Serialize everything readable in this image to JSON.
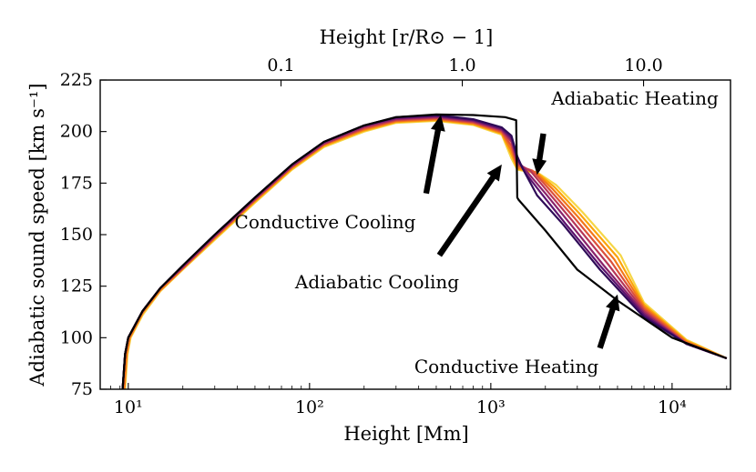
{
  "chart_data": {
    "type": "line",
    "title": "",
    "xlabel": "Height [Mm]",
    "ylabel": "Adiabatic sound speed [km s⁻¹]",
    "x2label": "Height [r/R⊙ − 1]",
    "xscale": "log",
    "xlim": [
      7,
      21000
    ],
    "ylim": [
      75,
      225
    ],
    "xticks": [
      {
        "value": 10,
        "label": "10¹"
      },
      {
        "value": 100,
        "label": "10²"
      },
      {
        "value": 1000,
        "label": "10³"
      },
      {
        "value": 10000,
        "label": "10⁴"
      }
    ],
    "x2ticks": [
      {
        "value": 69.6,
        "label": "0.1"
      },
      {
        "value": 696,
        "label": "1.0"
      },
      {
        "value": 6960,
        "label": "10.0"
      }
    ],
    "yticks": [
      75,
      100,
      125,
      150,
      175,
      200,
      225
    ],
    "grid": false,
    "legend": "none",
    "colors": [
      "#000000",
      "#2e0a57",
      "#5c126e",
      "#8a226a",
      "#b73557",
      "#dc503b",
      "#f3771a",
      "#fca50a",
      "#f6d645"
    ],
    "series": [
      {
        "values": [
          [
            9.3,
            75
          ],
          [
            9.6,
            92
          ],
          [
            10,
            100
          ],
          [
            12,
            113
          ],
          [
            15,
            124
          ],
          [
            20,
            135
          ],
          [
            30,
            150
          ],
          [
            50,
            168
          ],
          [
            80,
            184
          ],
          [
            120,
            195
          ],
          [
            200,
            203
          ],
          [
            300,
            207
          ],
          [
            500,
            208.3
          ],
          [
            800,
            208
          ],
          [
            1200,
            207
          ],
          [
            1380,
            205.5
          ],
          [
            1400,
            168
          ],
          [
            1420,
            167
          ],
          [
            2000,
            152
          ],
          [
            3000,
            133
          ],
          [
            5000,
            118
          ],
          [
            10000,
            100
          ],
          [
            20000,
            90
          ]
        ]
      },
      {
        "values": [
          [
            9.3,
            75
          ],
          [
            9.6,
            92
          ],
          [
            10,
            100
          ],
          [
            12,
            113
          ],
          [
            15,
            124
          ],
          [
            20,
            135
          ],
          [
            30,
            150
          ],
          [
            50,
            168
          ],
          [
            80,
            184
          ],
          [
            120,
            195
          ],
          [
            200,
            203
          ],
          [
            300,
            207
          ],
          [
            500,
            208
          ],
          [
            800,
            206
          ],
          [
            1150,
            202
          ],
          [
            1300,
            198
          ],
          [
            1400,
            188
          ],
          [
            1500,
            182
          ],
          [
            1800,
            169
          ],
          [
            2500,
            155
          ],
          [
            4000,
            133
          ],
          [
            7000,
            110
          ],
          [
            12000,
            97
          ],
          [
            20000,
            90
          ]
        ]
      },
      {
        "values": [
          [
            9.3,
            75
          ],
          [
            9.6,
            92
          ],
          [
            10,
            100
          ],
          [
            12,
            113
          ],
          [
            15,
            124
          ],
          [
            20,
            135
          ],
          [
            30,
            150
          ],
          [
            50,
            168
          ],
          [
            80,
            184
          ],
          [
            120,
            195
          ],
          [
            200,
            203
          ],
          [
            300,
            206.6
          ],
          [
            500,
            207.6
          ],
          [
            800,
            205.6
          ],
          [
            1150,
            201.5
          ],
          [
            1300,
            197
          ],
          [
            1400,
            187
          ],
          [
            1550,
            180
          ],
          [
            1900,
            170
          ],
          [
            2600,
            155
          ],
          [
            4000,
            135
          ],
          [
            7000,
            111
          ],
          [
            12000,
            97
          ],
          [
            20000,
            90
          ]
        ]
      },
      {
        "values": [
          [
            9.3,
            75
          ],
          [
            9.6,
            92
          ],
          [
            10,
            100
          ],
          [
            12,
            113
          ],
          [
            15,
            124
          ],
          [
            20,
            134.5
          ],
          [
            30,
            149.5
          ],
          [
            50,
            167.5
          ],
          [
            80,
            183.5
          ],
          [
            120,
            194.5
          ],
          [
            200,
            202.5
          ],
          [
            300,
            206.2
          ],
          [
            500,
            207.2
          ],
          [
            800,
            205.2
          ],
          [
            1150,
            201
          ],
          [
            1300,
            196
          ],
          [
            1400,
            186
          ],
          [
            1600,
            180
          ],
          [
            2000,
            170
          ],
          [
            2700,
            156
          ],
          [
            4200,
            135
          ],
          [
            7000,
            112
          ],
          [
            12000,
            97
          ],
          [
            20000,
            90
          ]
        ]
      },
      {
        "values": [
          [
            9.3,
            75
          ],
          [
            9.6,
            92
          ],
          [
            10,
            100
          ],
          [
            12,
            113
          ],
          [
            15,
            124
          ],
          [
            20,
            134
          ],
          [
            30,
            149
          ],
          [
            50,
            167
          ],
          [
            80,
            183
          ],
          [
            120,
            194
          ],
          [
            200,
            202
          ],
          [
            300,
            205.8
          ],
          [
            500,
            206.8
          ],
          [
            800,
            204.8
          ],
          [
            1150,
            200.5
          ],
          [
            1300,
            195
          ],
          [
            1400,
            184.5
          ],
          [
            1650,
            181
          ],
          [
            2100,
            170
          ],
          [
            2800,
            157
          ],
          [
            4400,
            136
          ],
          [
            7000,
            113
          ],
          [
            12000,
            97
          ],
          [
            20000,
            90
          ]
        ]
      },
      {
        "values": [
          [
            9.3,
            75
          ],
          [
            9.6,
            92
          ],
          [
            10,
            100
          ],
          [
            12,
            113
          ],
          [
            15,
            124
          ],
          [
            20,
            134
          ],
          [
            30,
            149
          ],
          [
            50,
            167
          ],
          [
            80,
            183
          ],
          [
            120,
            194
          ],
          [
            200,
            201.5
          ],
          [
            300,
            205.4
          ],
          [
            500,
            206.4
          ],
          [
            800,
            204.4
          ],
          [
            1150,
            200
          ],
          [
            1300,
            193
          ],
          [
            1400,
            183.5
          ],
          [
            1700,
            181
          ],
          [
            2150,
            171
          ],
          [
            2900,
            158
          ],
          [
            4600,
            137
          ],
          [
            7000,
            114
          ],
          [
            12000,
            97.5
          ],
          [
            20000,
            90
          ]
        ]
      },
      {
        "values": [
          [
            9.5,
            75
          ],
          [
            9.8,
            92
          ],
          [
            10.2,
            100
          ],
          [
            12,
            112
          ],
          [
            15,
            123
          ],
          [
            20,
            133.5
          ],
          [
            30,
            148.5
          ],
          [
            50,
            166.5
          ],
          [
            80,
            182.5
          ],
          [
            120,
            193.5
          ],
          [
            200,
            201
          ],
          [
            300,
            205
          ],
          [
            500,
            206
          ],
          [
            800,
            204
          ],
          [
            1150,
            199.5
          ],
          [
            1300,
            191
          ],
          [
            1400,
            182.5
          ],
          [
            1750,
            180.5
          ],
          [
            2200,
            172
          ],
          [
            3000,
            159
          ],
          [
            4800,
            138
          ],
          [
            7000,
            115
          ],
          [
            12000,
            98
          ],
          [
            20000,
            90
          ]
        ]
      },
      {
        "values": [
          [
            9.5,
            75
          ],
          [
            9.8,
            92
          ],
          [
            10.2,
            100
          ],
          [
            12,
            112
          ],
          [
            15,
            123
          ],
          [
            20,
            133.5
          ],
          [
            30,
            148
          ],
          [
            50,
            166
          ],
          [
            80,
            182
          ],
          [
            120,
            193
          ],
          [
            200,
            200.5
          ],
          [
            300,
            204.6
          ],
          [
            500,
            205.6
          ],
          [
            800,
            203.6
          ],
          [
            1150,
            199
          ],
          [
            1300,
            189
          ],
          [
            1400,
            182
          ],
          [
            1800,
            180
          ],
          [
            2250,
            173
          ],
          [
            3100,
            160
          ],
          [
            5000,
            139
          ],
          [
            7000,
            116
          ],
          [
            12000,
            98.5
          ],
          [
            20000,
            90
          ]
        ]
      },
      {
        "values": [
          [
            9.6,
            75
          ],
          [
            9.9,
            92
          ],
          [
            10.3,
            100
          ],
          [
            12,
            111
          ],
          [
            15,
            122.5
          ],
          [
            20,
            133
          ],
          [
            30,
            147.5
          ],
          [
            50,
            165.5
          ],
          [
            80,
            181.5
          ],
          [
            120,
            192.5
          ],
          [
            200,
            200
          ],
          [
            300,
            204.2
          ],
          [
            500,
            205.2
          ],
          [
            800,
            203.2
          ],
          [
            1150,
            198.5
          ],
          [
            1300,
            187
          ],
          [
            1400,
            181.5
          ],
          [
            1850,
            179.5
          ],
          [
            2300,
            174
          ],
          [
            3200,
            161
          ],
          [
            5200,
            140
          ],
          [
            7000,
            117
          ],
          [
            12000,
            99
          ],
          [
            20000,
            90
          ]
        ]
      }
    ],
    "annotations": [
      {
        "text": "Adiabatic Heating",
        "arrow_tip": [
          1800,
          179
        ],
        "arrow_tail": [
          1950,
          199
        ]
      },
      {
        "text": "Conductive Cooling",
        "arrow_tip": [
          530,
          208
        ],
        "arrow_tail": [
          440,
          170
        ]
      },
      {
        "text": "Adiabatic Cooling",
        "arrow_tip": [
          1150,
          184
        ],
        "arrow_tail": [
          520,
          140
        ]
      },
      {
        "text": "Conductive Heating",
        "arrow_tip": [
          5000,
          121
        ],
        "arrow_tail": [
          4000,
          95
        ]
      }
    ]
  }
}
